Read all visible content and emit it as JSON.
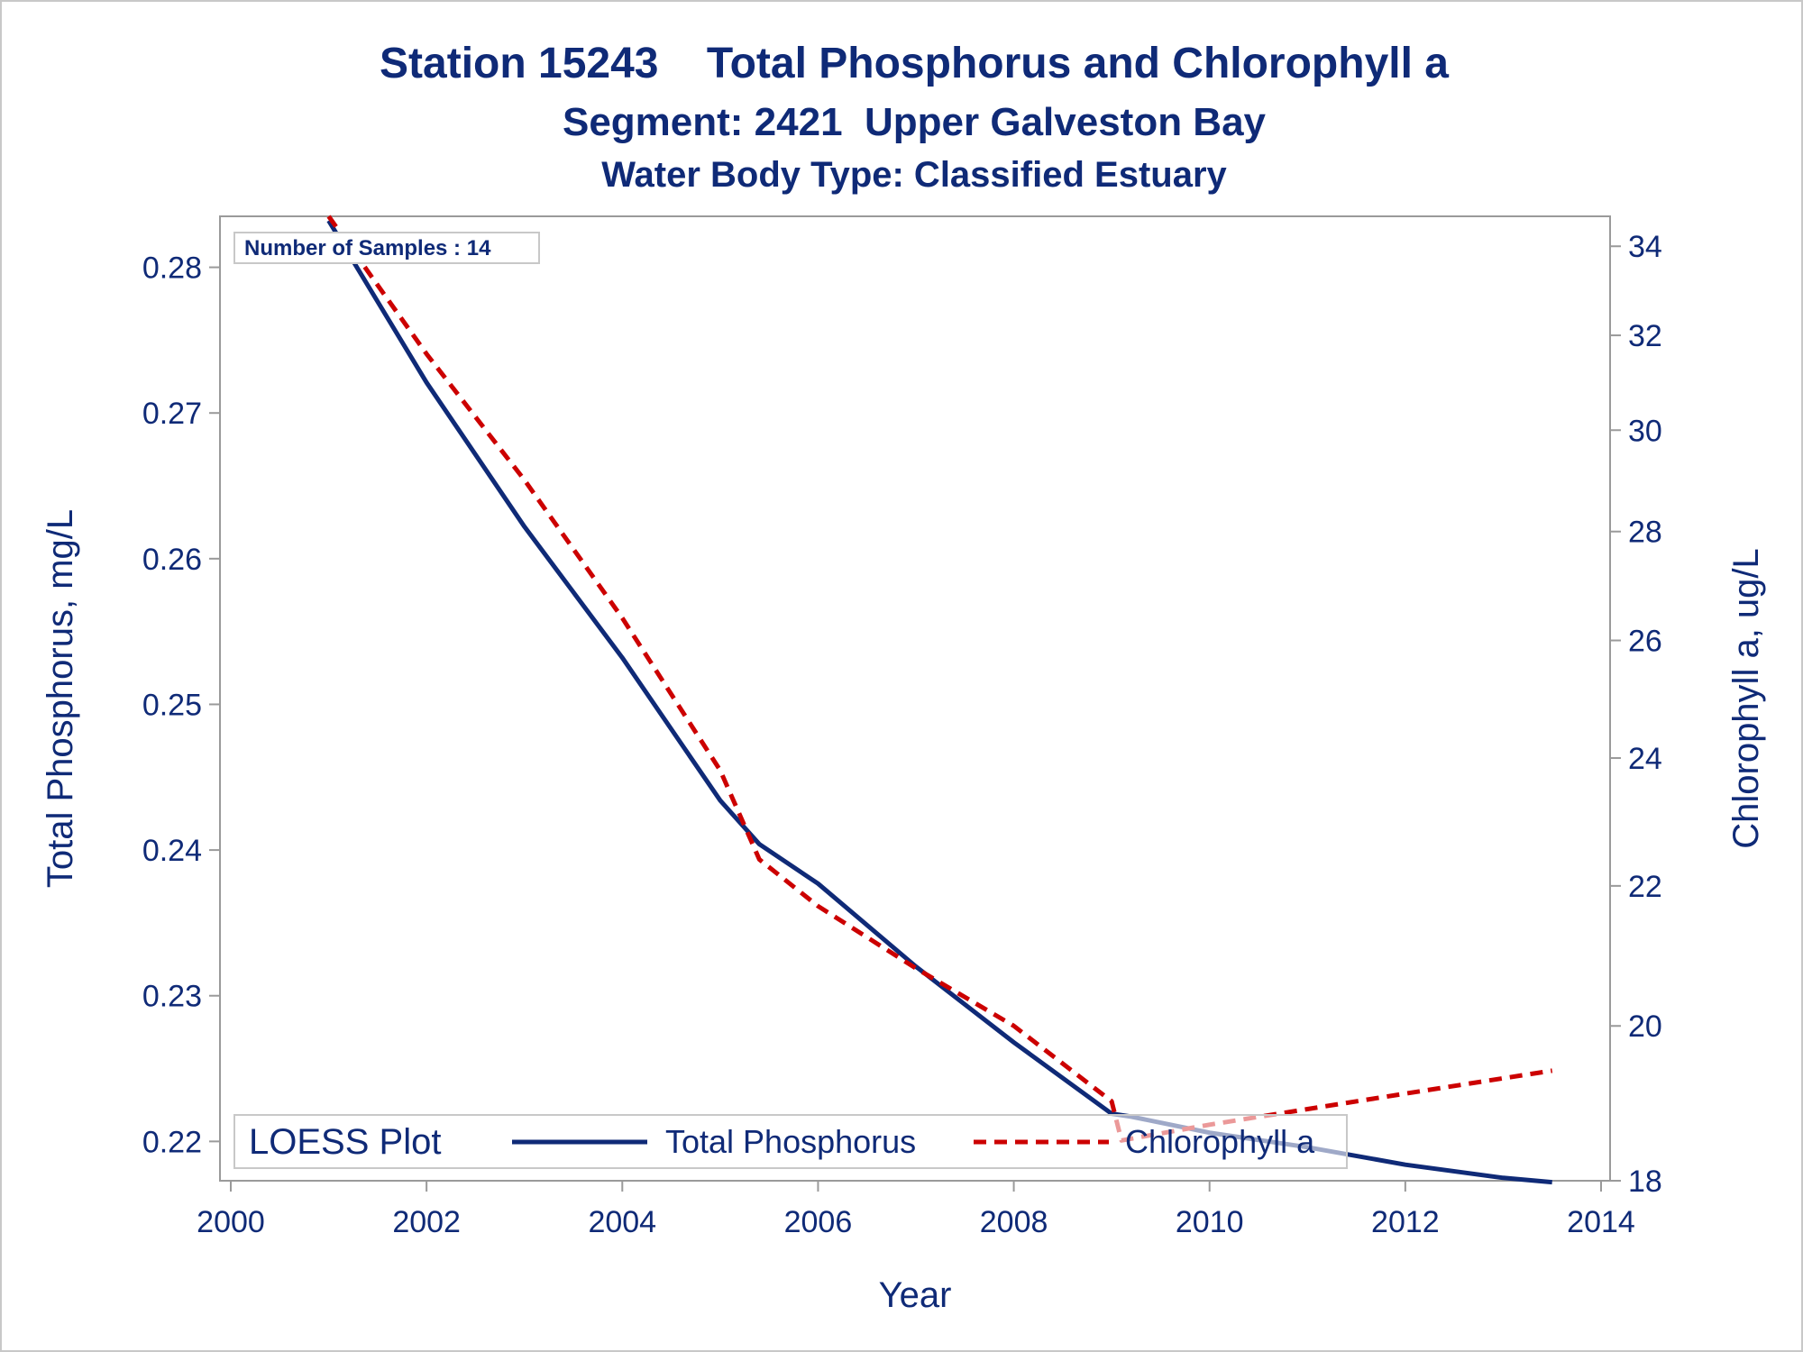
{
  "chart_data": {
    "type": "line",
    "title": "Station 15243    Total Phosphorus and Chlorophyll a",
    "subtitle": "Segment: 2421  Upper Galveston Bay",
    "subtitle2": "Water Body Type: Classified Estuary",
    "xlabel": "Year",
    "ylabel": "Total Phosphorus, mg/L",
    "y2label": "Chlorophyll a, ug/L",
    "annotation": "Number of Samples : 14",
    "legend_title": "LOESS Plot",
    "legend_position": "bottom-inside",
    "xlim": [
      2000,
      2014
    ],
    "x_ticks": [
      2000,
      2002,
      2004,
      2006,
      2008,
      2010,
      2012,
      2014
    ],
    "x_tick_labels": [
      "2000",
      "2002",
      "2004",
      "2006",
      "2008",
      "2010",
      "2012",
      "2014"
    ],
    "ylim": [
      0.2173,
      0.2835
    ],
    "y_ticks": [
      0.22,
      0.23,
      0.24,
      0.25,
      0.26,
      0.27,
      0.28
    ],
    "y_tick_labels": [
      "0.22",
      "0.23",
      "0.24",
      "0.25",
      "0.26",
      "0.27",
      "0.28"
    ],
    "y2_scale": "log",
    "y2lim": [
      18,
      34.7
    ],
    "y2_ticks": [
      18,
      20,
      22,
      24,
      26,
      28,
      30,
      32,
      34
    ],
    "y2_tick_labels": [
      "18",
      "20",
      "22",
      "24",
      "26",
      "28",
      "30",
      "32",
      "34"
    ],
    "grid": false,
    "series": [
      {
        "name": "Total Phosphorus",
        "axis": "left",
        "color": "#0f2a77",
        "style": "solid",
        "points": [
          [
            2001.0,
            0.2832
          ],
          [
            2002.0,
            0.2721
          ],
          [
            2003.0,
            0.2622
          ],
          [
            2004.0,
            0.2532
          ],
          [
            2005.0,
            0.2434
          ],
          [
            2005.4,
            0.2404
          ],
          [
            2006.0,
            0.2377
          ],
          [
            2007.0,
            0.232
          ],
          [
            2008.0,
            0.2268
          ],
          [
            2009.0,
            0.2219
          ],
          [
            2009.2,
            0.2217
          ],
          [
            2010.0,
            0.2206
          ],
          [
            2011.0,
            0.2196
          ],
          [
            2012.0,
            0.2184
          ],
          [
            2013.0,
            0.2175
          ],
          [
            2013.5,
            0.2172
          ]
        ]
      },
      {
        "name": "Chlorophyll a",
        "axis": "right",
        "color": "#cc0000",
        "style": "dashed",
        "points": [
          [
            2001.0,
            34.7
          ],
          [
            2002.0,
            31.6
          ],
          [
            2003.0,
            29.0
          ],
          [
            2004.0,
            26.4
          ],
          [
            2005.0,
            23.8
          ],
          [
            2005.4,
            22.4
          ],
          [
            2006.0,
            21.7
          ],
          [
            2007.0,
            20.8
          ],
          [
            2008.0,
            20.0
          ],
          [
            2009.0,
            19.0
          ],
          [
            2009.1,
            18.5
          ],
          [
            2010.0,
            18.7
          ],
          [
            2011.0,
            18.9
          ],
          [
            2012.0,
            19.1
          ],
          [
            2013.0,
            19.3
          ],
          [
            2013.5,
            19.4
          ]
        ]
      }
    ]
  }
}
